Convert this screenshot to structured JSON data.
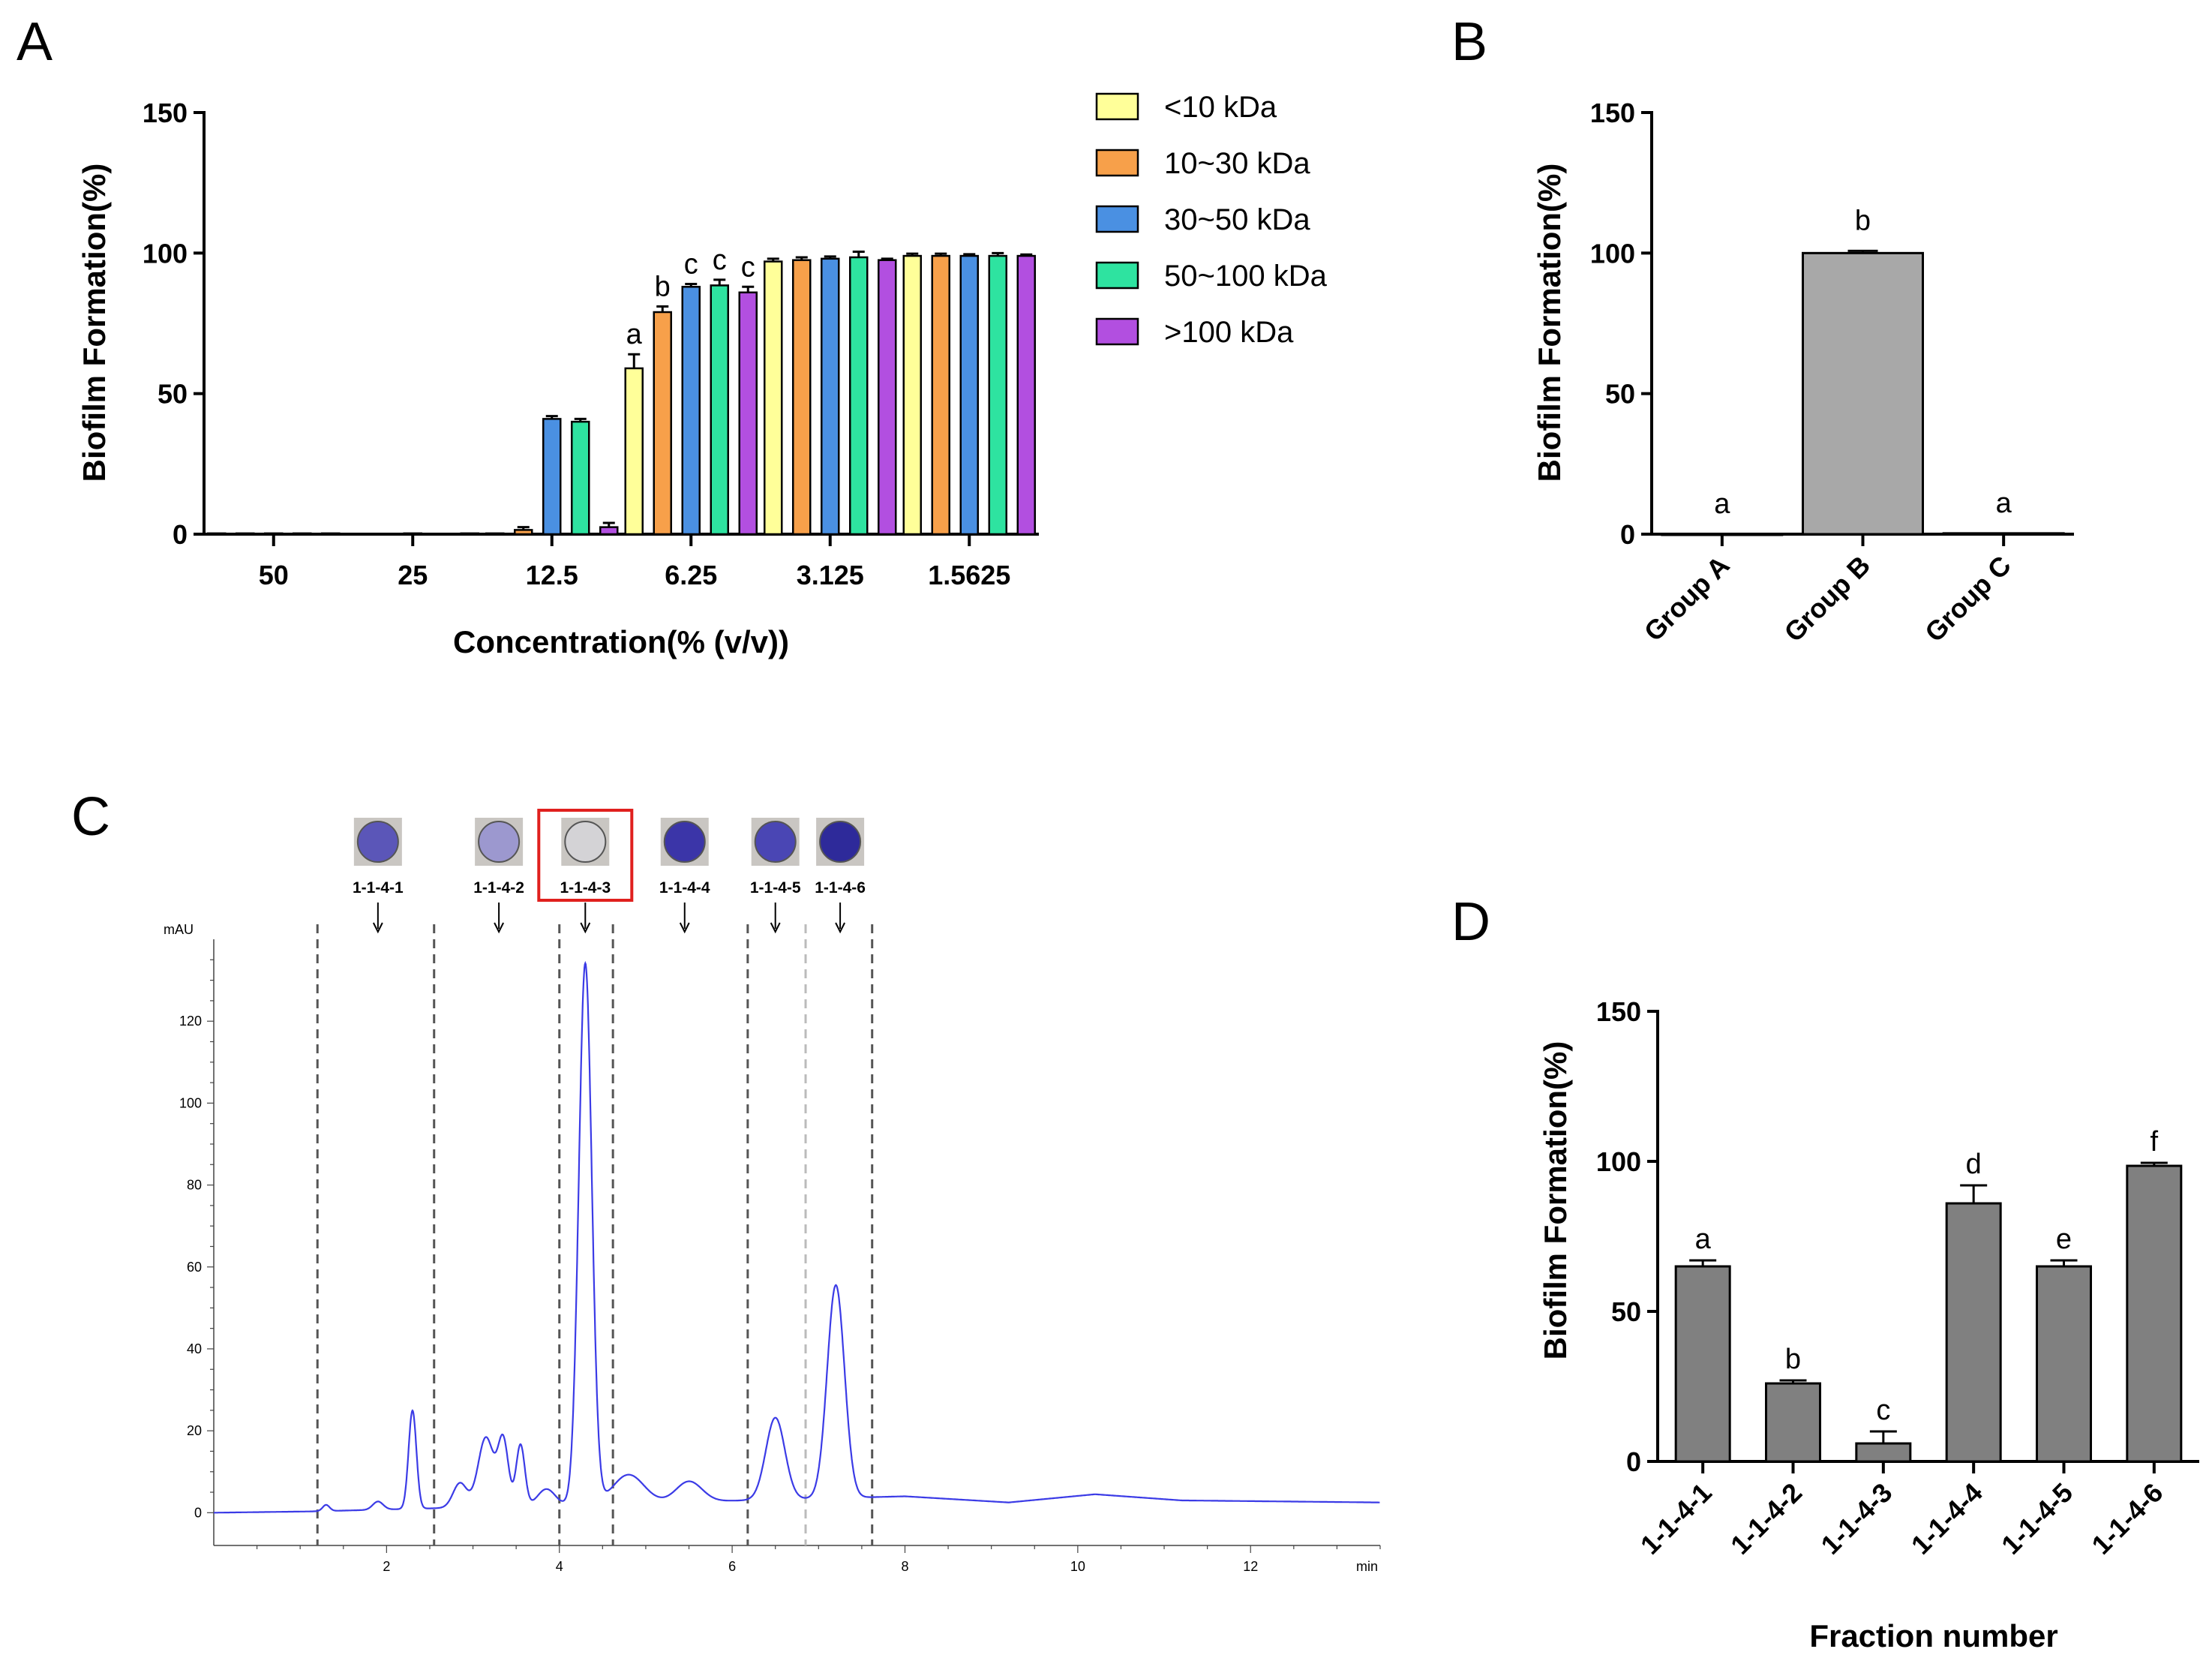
{
  "chart_data": [
    {
      "panel": "A",
      "type": "bar",
      "xlabel": "Concentration(% (v/v))",
      "ylabel": "Biofilm Formation(%)",
      "ylim": [
        0,
        150
      ],
      "yticks": [
        "0",
        "50",
        "100",
        "150"
      ],
      "categories": [
        "50",
        "25",
        "12.5",
        "6.25",
        "3.125",
        "1.5625"
      ],
      "series": [
        {
          "name": "<10 kDa",
          "color": "#FFFF99",
          "values": [
            0.3,
            0.2,
            0.3,
            59,
            97,
            99
          ],
          "errors": [
            0,
            0,
            0,
            5,
            1,
            0.8
          ]
        },
        {
          "name": "10~30 kDa",
          "color": "#F7A04A",
          "values": [
            0.3,
            0.2,
            1.5,
            79,
            97.5,
            99
          ],
          "errors": [
            0,
            0,
            1,
            2,
            1,
            0.8
          ]
        },
        {
          "name": "30~50 kDa",
          "color": "#4A90E2",
          "values": [
            0.3,
            0.3,
            41,
            88,
            98,
            99
          ],
          "errors": [
            0,
            0,
            1,
            1,
            0.8,
            0.6
          ]
        },
        {
          "name": "50~100 kDa",
          "color": "#2EE3A0",
          "values": [
            0.3,
            0.2,
            40,
            88.5,
            98.5,
            99
          ],
          "errors": [
            0,
            0,
            1,
            2,
            2,
            1
          ]
        },
        {
          "name": ">100 kDa",
          "color": "#B24FE0",
          "values": [
            0.3,
            0.3,
            2.5,
            86,
            97.5,
            99
          ],
          "errors": [
            0,
            0,
            1.5,
            2,
            0.5,
            0.5
          ]
        }
      ],
      "annotations": [
        {
          "category": "6.25",
          "series": "<10 kDa",
          "text": "a"
        },
        {
          "category": "6.25",
          "series": "10~30 kDa",
          "text": "b"
        },
        {
          "category": "6.25",
          "series": "30~50 kDa",
          "text": "c"
        },
        {
          "category": "6.25",
          "series": "50~100 kDa",
          "text": "c"
        },
        {
          "category": "6.25",
          "series": ">100 kDa",
          "text": "c"
        }
      ]
    },
    {
      "panel": "B",
      "type": "bar",
      "xlabel": "",
      "ylabel": "Biofilm Formation(%)",
      "ylim": [
        0,
        150
      ],
      "yticks": [
        "0",
        "50",
        "100",
        "150"
      ],
      "categories": [
        "Group A",
        "Group B",
        "Group C"
      ],
      "values": [
        0,
        100,
        0.3
      ],
      "errors": [
        0,
        0.8,
        0
      ],
      "color": "#A8A8A8",
      "labels": [
        "a",
        "b",
        "a"
      ]
    },
    {
      "panel": "C",
      "type": "line",
      "xlabel": "min",
      "ylabel": "mAU",
      "xlim": [
        0,
        13.5
      ],
      "ylim": [
        -8,
        140
      ],
      "xticks": [
        "2",
        "4",
        "6",
        "8",
        "10",
        "12"
      ],
      "yticks": [
        "0",
        "20",
        "40",
        "60",
        "80",
        "100",
        "120"
      ],
      "color": "#3B3BE6",
      "fraction_boundaries": [
        1.2,
        2.55,
        4.0,
        4.62,
        6.18,
        6.85,
        7.62
      ],
      "fractions": [
        {
          "name": "1-1-4-1",
          "arrow_x": 1.9,
          "well_color": "#5B56B8",
          "highlighted": false
        },
        {
          "name": "1-1-4-2",
          "arrow_x": 3.3,
          "well_color": "#9C98CF",
          "highlighted": false
        },
        {
          "name": "1-1-4-3",
          "arrow_x": 4.3,
          "well_color": "#D4D3D6",
          "highlighted": true
        },
        {
          "name": "1-1-4-4",
          "arrow_x": 5.45,
          "well_color": "#3B35A8",
          "highlighted": false
        },
        {
          "name": "1-1-4-5",
          "arrow_x": 6.5,
          "well_color": "#4A46B4",
          "highlighted": false
        },
        {
          "name": "1-1-4-6",
          "arrow_x": 7.25,
          "well_color": "#2E2A9A",
          "highlighted": false
        }
      ],
      "baseline": [
        [
          0,
          0
        ],
        [
          1.1,
          0.3
        ],
        [
          8,
          4
        ],
        [
          9.2,
          2.5
        ],
        [
          10.2,
          4.5
        ],
        [
          11.2,
          3
        ],
        [
          13.5,
          2.5
        ]
      ],
      "peaks": [
        {
          "rt": 1.3,
          "height": 1.5,
          "width": 0.04
        },
        {
          "rt": 1.9,
          "height": 2,
          "width": 0.06
        },
        {
          "rt": 2.3,
          "height": 24,
          "width": 0.045
        },
        {
          "rt": 2.85,
          "height": 6,
          "width": 0.08
        },
        {
          "rt": 3.15,
          "height": 17,
          "width": 0.09
        },
        {
          "rt": 3.35,
          "height": 16,
          "width": 0.06
        },
        {
          "rt": 3.55,
          "height": 15,
          "width": 0.05
        },
        {
          "rt": 3.85,
          "height": 4,
          "width": 0.1
        },
        {
          "rt": 4.3,
          "height": 132,
          "width": 0.075
        },
        {
          "rt": 4.8,
          "height": 7,
          "width": 0.18
        },
        {
          "rt": 5.5,
          "height": 5,
          "width": 0.15
        },
        {
          "rt": 6.5,
          "height": 20,
          "width": 0.11
        },
        {
          "rt": 7.2,
          "height": 52,
          "width": 0.1
        }
      ]
    },
    {
      "panel": "D",
      "type": "bar",
      "xlabel": "Fraction number",
      "ylabel": "Biofilm Formation(%)",
      "ylim": [
        0,
        150
      ],
      "yticks": [
        "0",
        "50",
        "100",
        "150"
      ],
      "categories": [
        "1-1-4-1",
        "1-1-4-2",
        "1-1-4-3",
        "1-1-4-4",
        "1-1-4-5",
        "1-1-4-6"
      ],
      "values": [
        65,
        26,
        6,
        86,
        65,
        98.5
      ],
      "errors": [
        2,
        1,
        4,
        6,
        2,
        1
      ],
      "color": "#808080",
      "labels": [
        "a",
        "b",
        "c",
        "d",
        "e",
        "f"
      ]
    }
  ]
}
